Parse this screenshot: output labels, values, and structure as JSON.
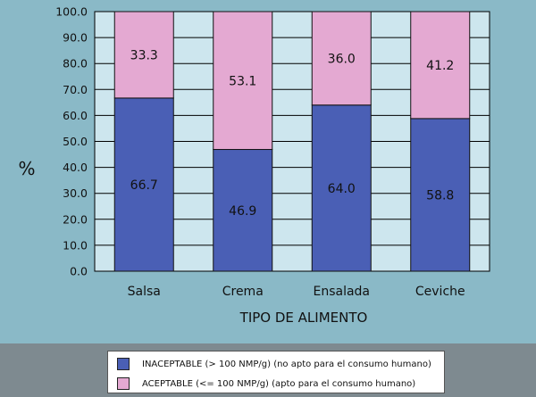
{
  "chart_data": {
    "type": "bar",
    "stacked": true,
    "categories": [
      "Salsa",
      "Crema",
      "Ensalada",
      "Ceviche"
    ],
    "series": [
      {
        "name": "INACEPTABLE (> 100 NMP/g) (no apto para el consumo humano)",
        "values": [
          66.7,
          46.9,
          64.0,
          58.8
        ],
        "color": "#4a5fb5"
      },
      {
        "name": "ACEPTABLE (<= 100 NMP/g) (apto para el consumo humano)",
        "values": [
          33.3,
          53.1,
          36.0,
          41.2
        ],
        "color": "#e4a9d2"
      }
    ],
    "data_labels": {
      "inaceptable": [
        "66.7",
        "46.9",
        "64.0",
        "58.8"
      ],
      "aceptable": [
        "33.3",
        "53.1",
        "36.0",
        "41.2"
      ]
    },
    "xlabel": "TIPO DE ALIMENTO",
    "ylabel": "%",
    "ylim": [
      0,
      100
    ],
    "yticks": [
      "0.0",
      "10.0",
      "20.0",
      "30.0",
      "40.0",
      "50.0",
      "60.0",
      "70.0",
      "80.0",
      "90.0",
      "100.0"
    ],
    "grid": true,
    "legend_position": "bottom"
  },
  "colors": {
    "page_background": "#8ab9c7",
    "plot_background": "#cde6ee",
    "legend_panel": "#7e8a90"
  }
}
